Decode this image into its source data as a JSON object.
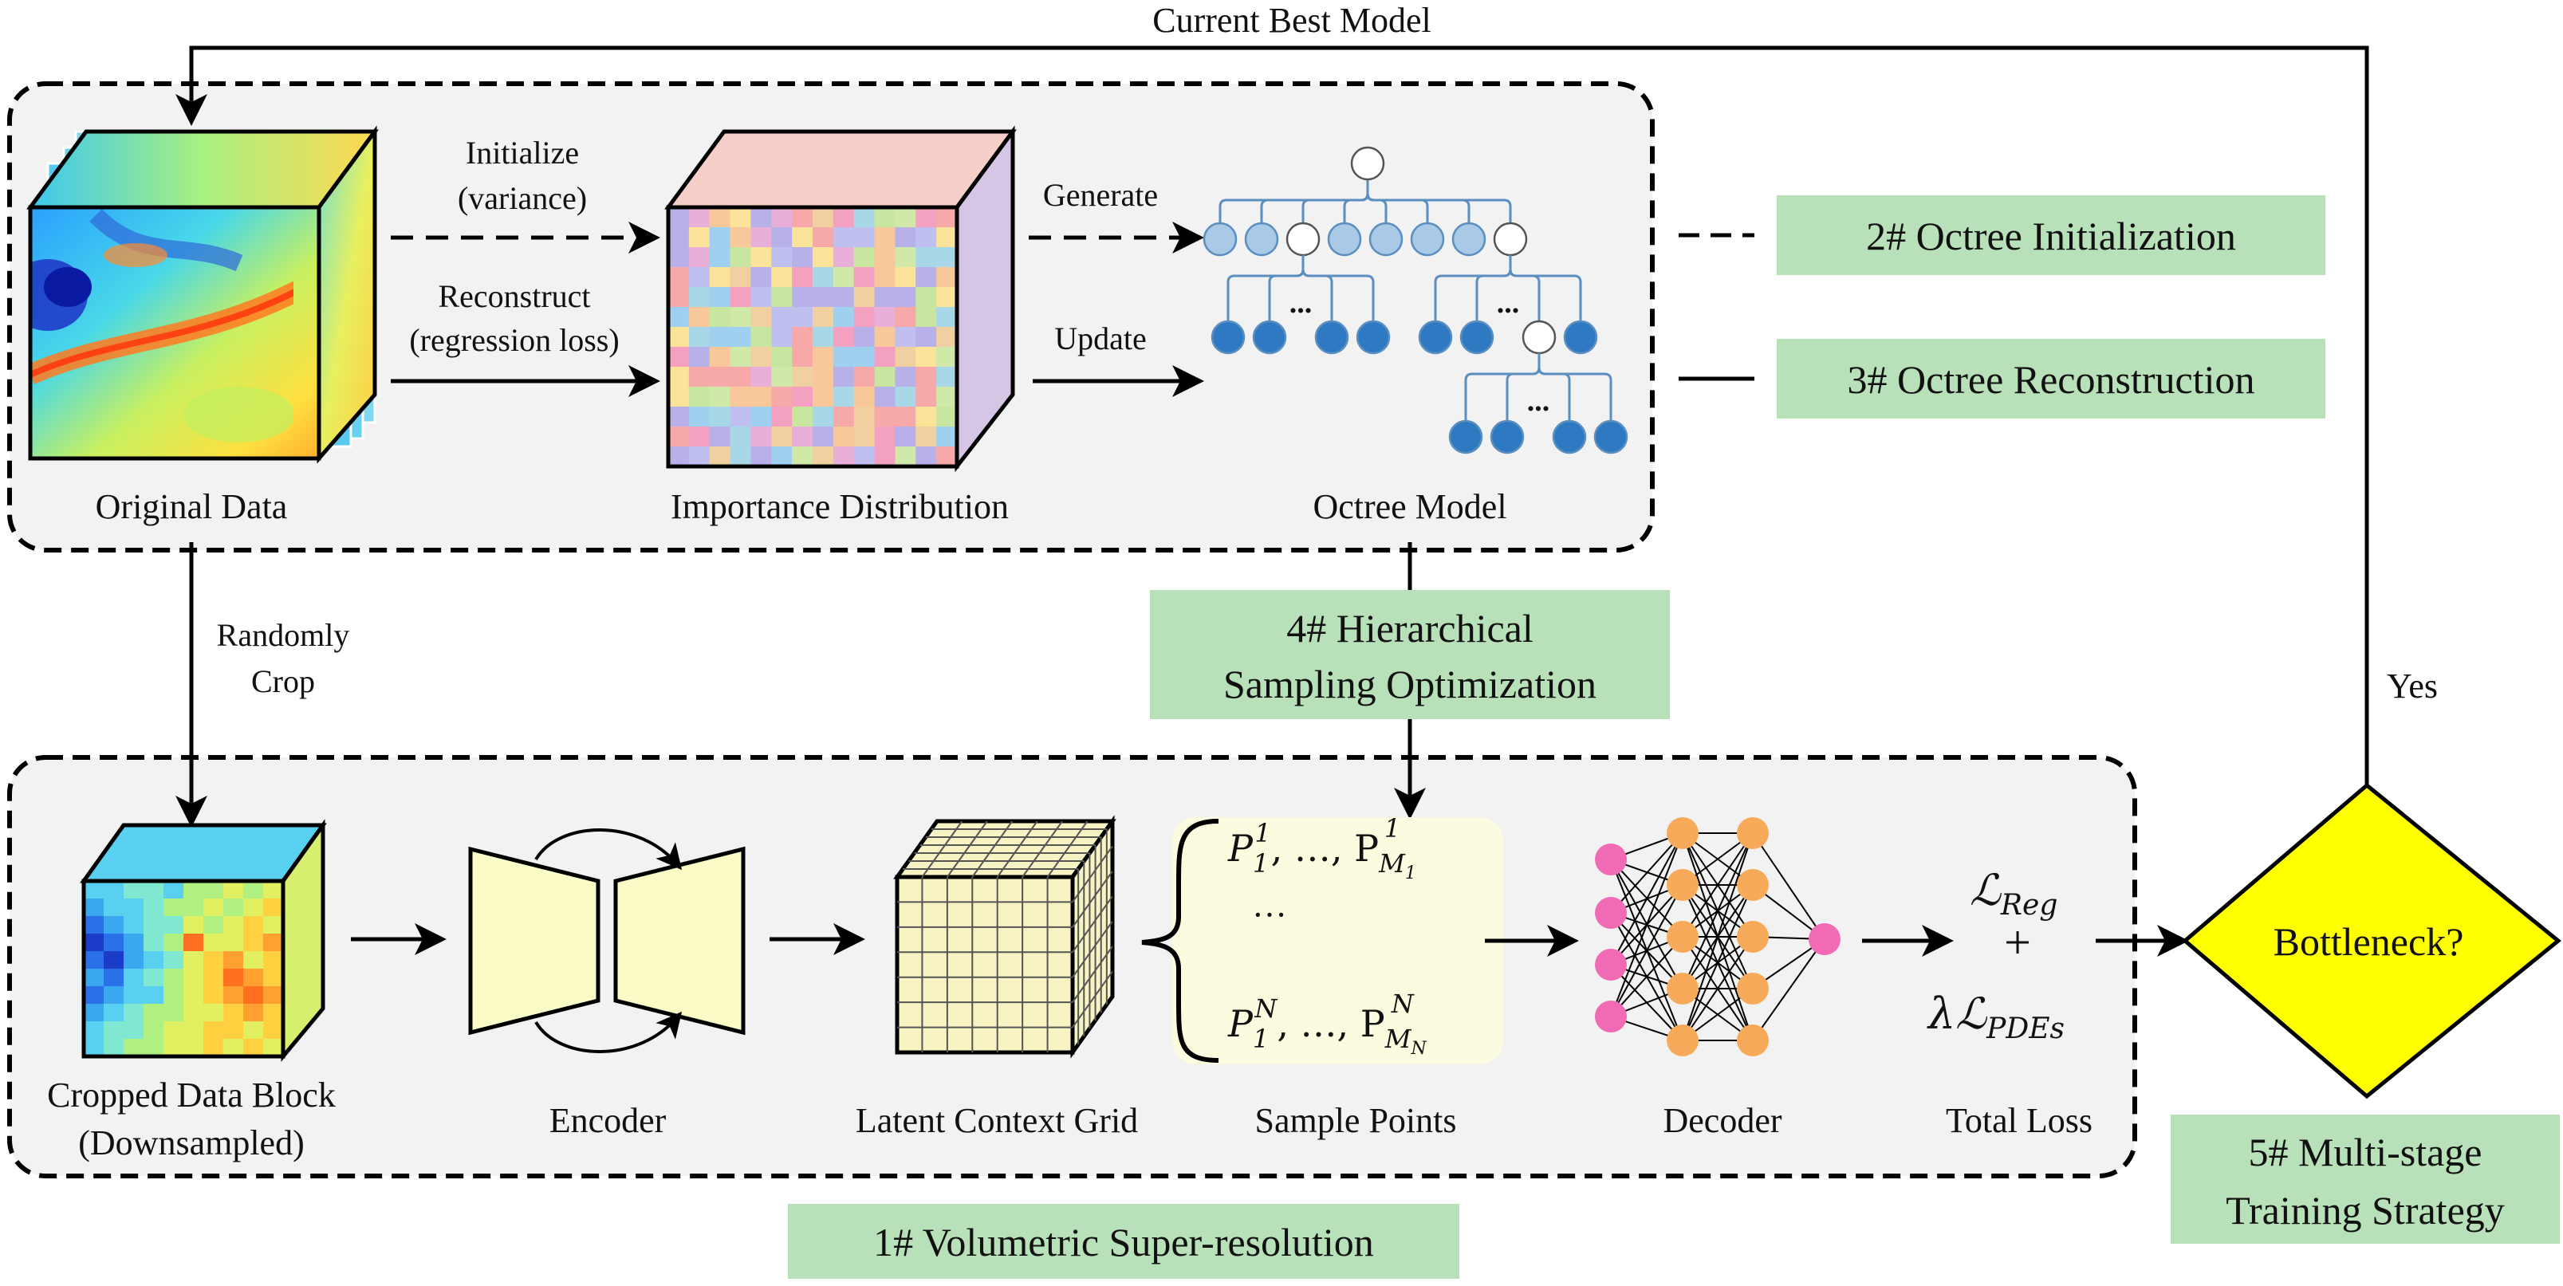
{
  "feedback": {
    "top_label": "Current Best Model",
    "yes_label": "Yes"
  },
  "top_panel": {
    "original_data": "Original Data",
    "importance_distribution": "Importance Distribution",
    "octree_model": "Octree Model",
    "arrow_initialize_line1": "Initialize",
    "arrow_initialize_line2": "(variance)",
    "arrow_reconstruct_line1": "Reconstruct",
    "arrow_reconstruct_line2": "(regression loss)",
    "arrow_generate": "Generate",
    "arrow_update": "Update",
    "tree_ellipsis": "..."
  },
  "crop": {
    "line1": "Randomly",
    "line2": "Crop"
  },
  "stages": {
    "s1": "1# Volumetric Super-resolution",
    "s2": "2# Octree Initialization",
    "s3": "3# Octree Reconstruction",
    "s4_line1": "4# Hierarchical",
    "s4_line2": "Sampling Optimization",
    "s5_line1": "5# Multi-stage",
    "s5_line2": "Training Strategy"
  },
  "bottom_panel": {
    "cropped_line1": "Cropped Data Block",
    "cropped_line2": "(Downsampled)",
    "encoder": "Encoder",
    "latent_grid": "Latent Context Grid",
    "sample_points": "Sample Points",
    "decoder": "Decoder",
    "total_loss": "Total Loss",
    "bottleneck": "Bottleneck?",
    "sample_row1": "P_1^1, ..., P_{M_1}^1",
    "sample_dots": "···",
    "sample_row3": "P_1^N, ..., P_{M_N}^N",
    "loss_reg": "ℒReg",
    "loss_plus": "+",
    "loss_pde": "λℒPDEs"
  },
  "colors": {
    "panel_fill": "#f2f2f2",
    "stage_green": "#b8e0b9",
    "decision_yellow": "#ffff00",
    "sample_bg": "#fbfbe0",
    "encoder_fill": "#fbfbc8",
    "grid_fill": "#f7f3c3",
    "tree_light": "#a9c9e6",
    "tree_dark": "#2f78c2",
    "tree_line": "#5a8fc0",
    "nn_pink": "#f06bb4",
    "nn_orange": "#f7ab5a"
  }
}
